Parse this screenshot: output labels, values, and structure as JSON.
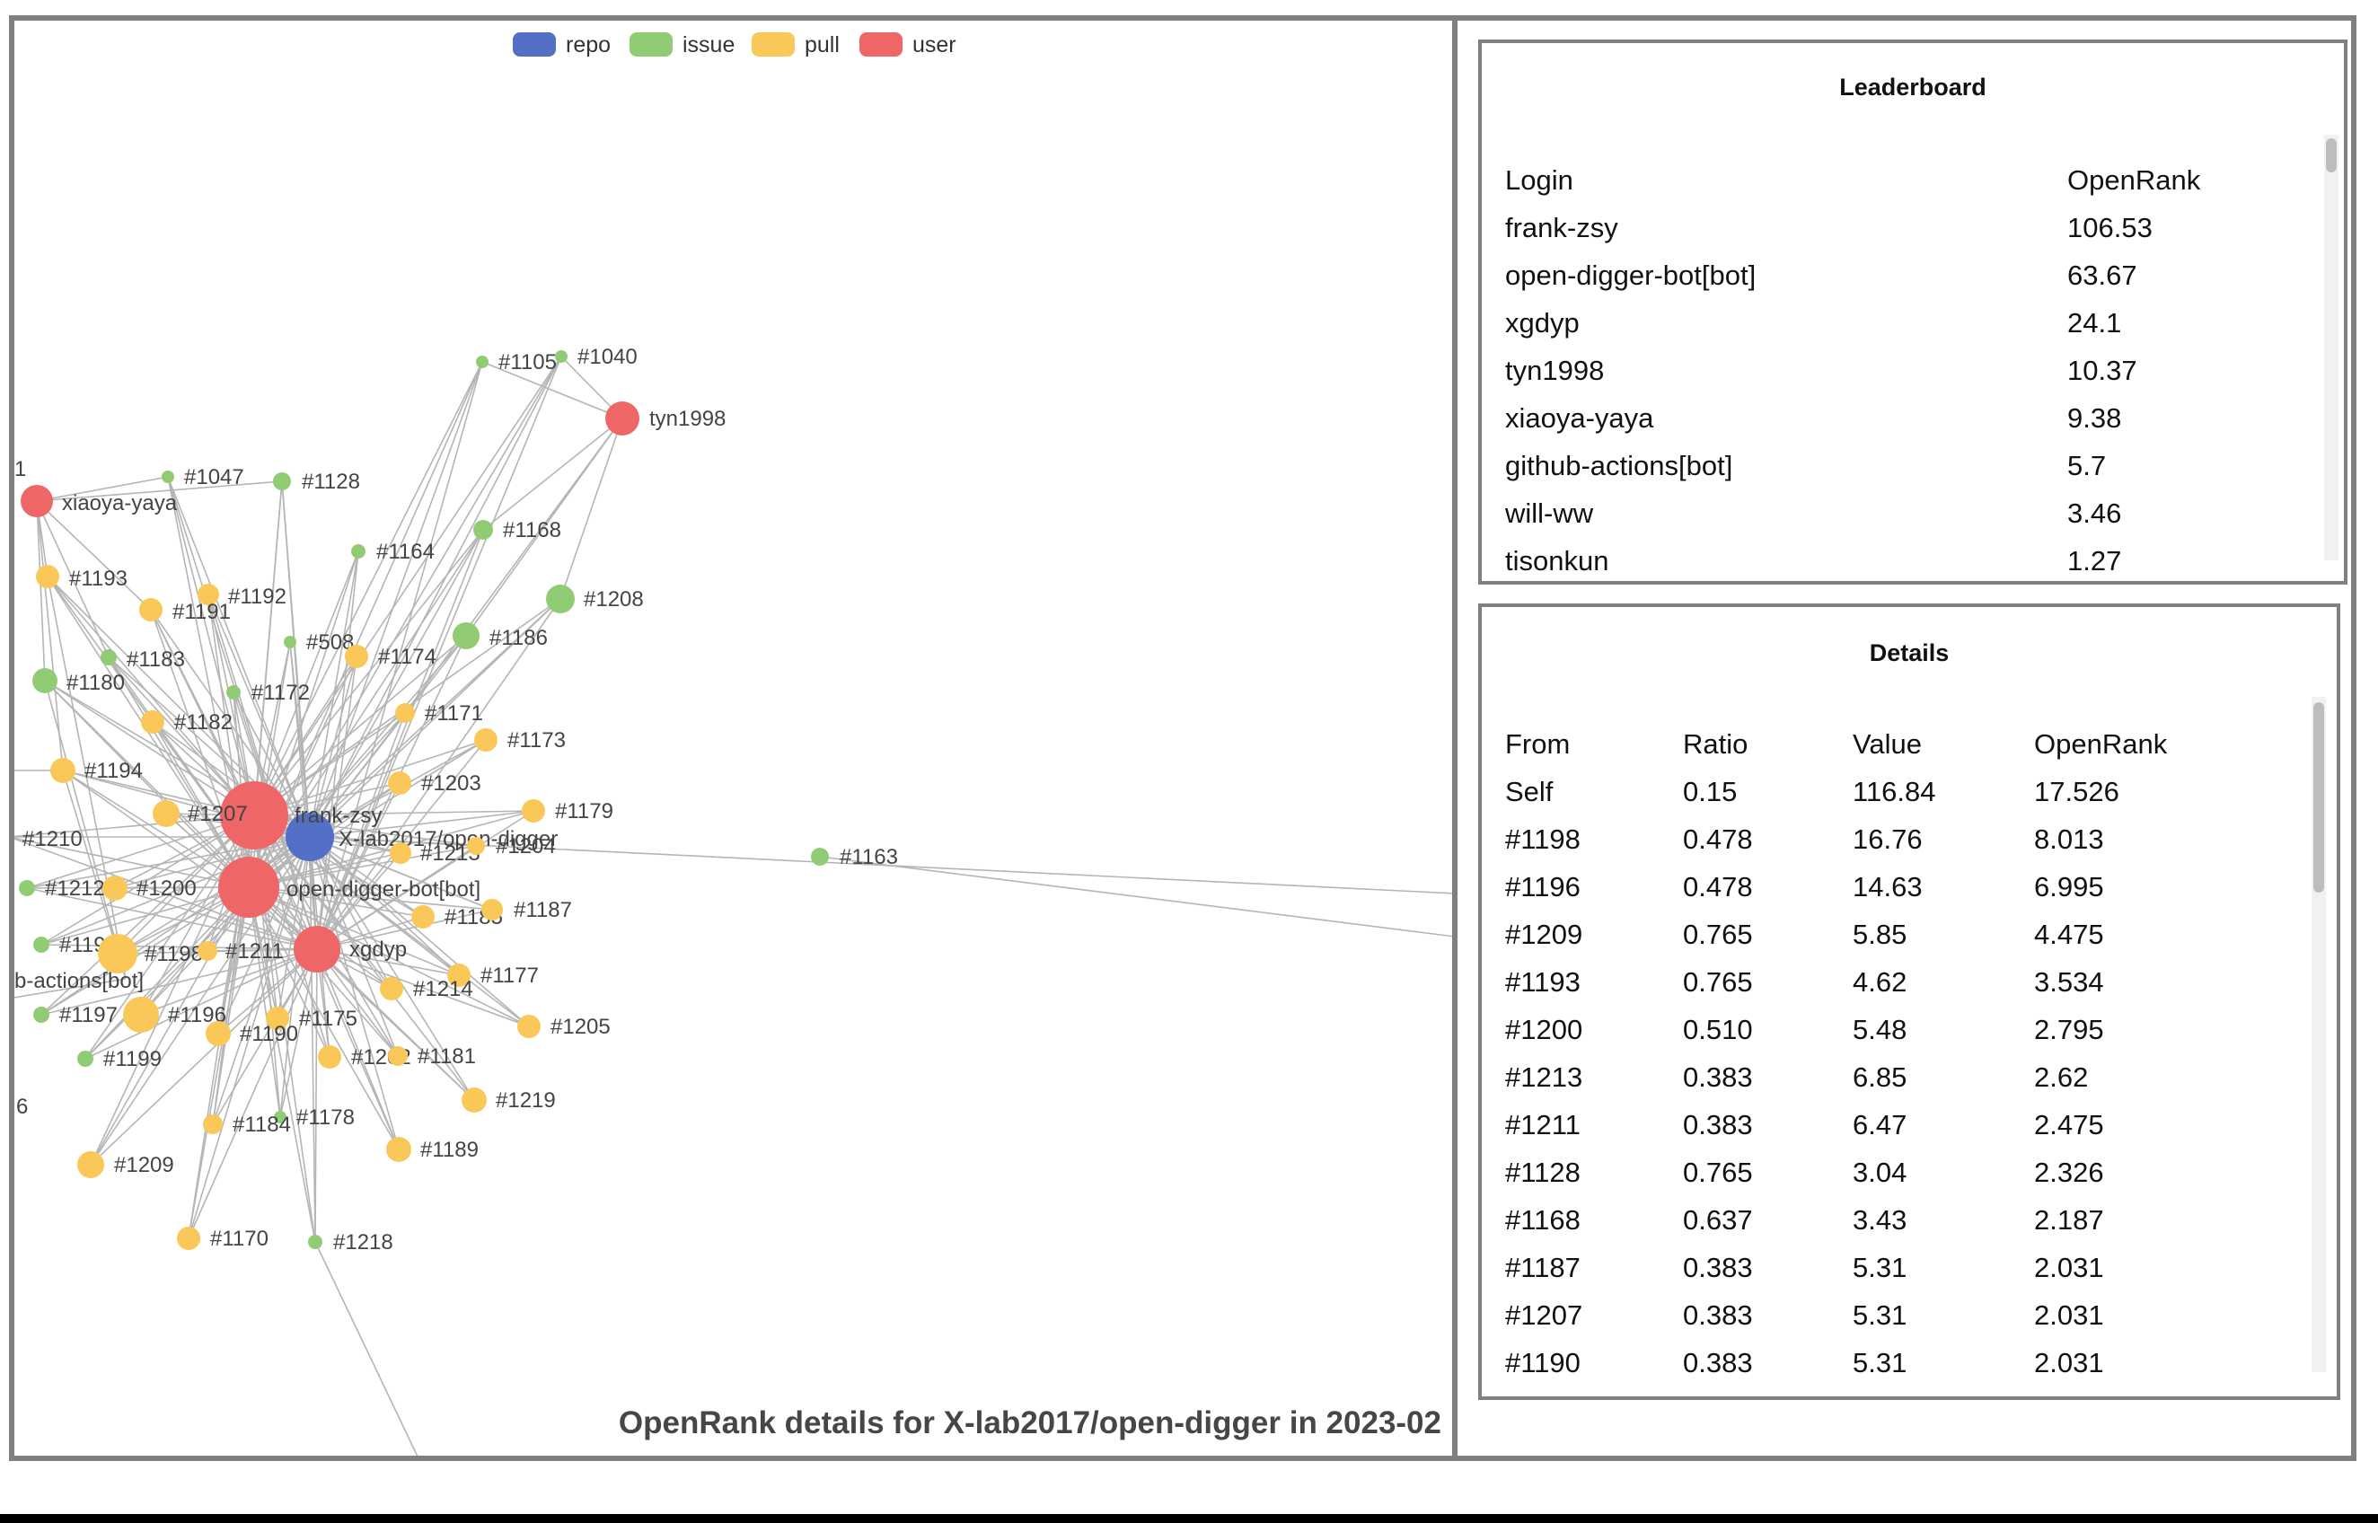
{
  "legend": [
    {
      "label": "repo",
      "color": "#5470c6"
    },
    {
      "label": "issue",
      "color": "#91cc75"
    },
    {
      "label": "pull",
      "color": "#fac858"
    },
    {
      "label": "user",
      "color": "#ee6666"
    }
  ],
  "graph": {
    "title": "OpenRank details for X-lab2017/open-digger in 2023-02",
    "nodes": [
      {
        "id": "repo",
        "label": "X-lab2017/open-digger",
        "type": "repo"
      },
      {
        "id": "frank",
        "label": "frank-zsy",
        "type": "user"
      },
      {
        "id": "bot",
        "label": "open-digger-bot[bot]",
        "type": "user"
      },
      {
        "id": "xgdyp",
        "label": "xgdyp",
        "type": "user"
      },
      {
        "id": "tyn",
        "label": "tyn1998",
        "type": "user"
      },
      {
        "id": "xiaoya",
        "label": "xiaoya-yaya",
        "type": "user"
      },
      {
        "id": "gha",
        "label": "b-actions[bot]",
        "type": "user"
      },
      {
        "id": "e1",
        "label": "1",
        "type": "user"
      },
      {
        "id": "e6",
        "label": "6",
        "type": "user"
      },
      {
        "id": "n1040",
        "label": "#1040",
        "type": "issue"
      },
      {
        "id": "n1105",
        "label": "#1105",
        "type": "issue"
      },
      {
        "id": "n1047",
        "label": "#1047",
        "type": "issue"
      },
      {
        "id": "n1128",
        "label": "#1128",
        "type": "issue"
      },
      {
        "id": "n1164",
        "label": "#1164",
        "type": "issue"
      },
      {
        "id": "n1168",
        "label": "#1168",
        "type": "issue"
      },
      {
        "id": "n1208",
        "label": "#1208",
        "type": "issue"
      },
      {
        "id": "n1186",
        "label": "#1186",
        "type": "issue"
      },
      {
        "id": "n508",
        "label": "#508",
        "type": "issue"
      },
      {
        "id": "n1183",
        "label": "#1183",
        "type": "issue"
      },
      {
        "id": "n1180",
        "label": "#1180",
        "type": "issue"
      },
      {
        "id": "n1172",
        "label": "#1172",
        "type": "issue"
      },
      {
        "id": "n1163",
        "label": "#1163",
        "type": "issue"
      },
      {
        "id": "n1212",
        "label": "#1212",
        "type": "issue"
      },
      {
        "id": "n1195",
        "label": "#1195",
        "type": "issue"
      },
      {
        "id": "n1197",
        "label": "#1197",
        "type": "issue"
      },
      {
        "id": "n1199",
        "label": "#1199",
        "type": "issue"
      },
      {
        "id": "n1178",
        "label": "#1178",
        "type": "issue"
      },
      {
        "id": "n1218",
        "label": "#1218",
        "type": "issue"
      },
      {
        "id": "n1193",
        "label": "#1193",
        "type": "pull"
      },
      {
        "id": "n1192",
        "label": "#1192",
        "type": "pull"
      },
      {
        "id": "n1191",
        "label": "#1191",
        "type": "pull"
      },
      {
        "id": "n1174",
        "label": "#1174",
        "type": "pull"
      },
      {
        "id": "n1182",
        "label": "#1182",
        "type": "pull"
      },
      {
        "id": "n1171",
        "label": "#1171",
        "type": "pull"
      },
      {
        "id": "n1173",
        "label": "#1173",
        "type": "pull"
      },
      {
        "id": "n1194",
        "label": "#1194",
        "type": "pull"
      },
      {
        "id": "n1203",
        "label": "#1203",
        "type": "pull"
      },
      {
        "id": "n1207",
        "label": "#1207",
        "type": "pull"
      },
      {
        "id": "n1179",
        "label": "#1179",
        "type": "pull"
      },
      {
        "id": "n1213",
        "label": "#1213",
        "type": "pull"
      },
      {
        "id": "n1204",
        "label": "#1204",
        "type": "pull"
      },
      {
        "id": "n1200",
        "label": "#1200",
        "type": "pull"
      },
      {
        "id": "n1185",
        "label": "#1185",
        "type": "pull"
      },
      {
        "id": "n1187",
        "label": "#1187",
        "type": "pull"
      },
      {
        "id": "n1198",
        "label": "#1198",
        "type": "pull"
      },
      {
        "id": "n1211",
        "label": "#1211",
        "type": "pull"
      },
      {
        "id": "n1177",
        "label": "#1177",
        "type": "pull"
      },
      {
        "id": "n1214",
        "label": "#1214",
        "type": "pull"
      },
      {
        "id": "n1196",
        "label": "#1196",
        "type": "pull"
      },
      {
        "id": "n1175",
        "label": "#1175",
        "type": "pull"
      },
      {
        "id": "n1190",
        "label": "#1190",
        "type": "pull"
      },
      {
        "id": "n1205",
        "label": "#1205",
        "type": "pull"
      },
      {
        "id": "n1202",
        "label": "#1202",
        "type": "pull"
      },
      {
        "id": "n1181",
        "label": "#1181",
        "type": "pull"
      },
      {
        "id": "n1219",
        "label": "#1219",
        "type": "pull"
      },
      {
        "id": "n1184",
        "label": "#1184",
        "type": "pull"
      },
      {
        "id": "n1189",
        "label": "#1189",
        "type": "pull"
      },
      {
        "id": "n1209",
        "label": "#1209",
        "type": "pull"
      },
      {
        "id": "n1170",
        "label": "#1170",
        "type": "pull"
      },
      {
        "id": "n1210",
        "label": "#1210",
        "type": "pull"
      }
    ]
  },
  "leaderboard": {
    "title": "Leaderboard",
    "headers": [
      "Login",
      "OpenRank"
    ],
    "rows": [
      [
        "frank-zsy",
        "106.53"
      ],
      [
        "open-digger-bot[bot]",
        "63.67"
      ],
      [
        "xgdyp",
        "24.1"
      ],
      [
        "tyn1998",
        "10.37"
      ],
      [
        "xiaoya-yaya",
        "9.38"
      ],
      [
        "github-actions[bot]",
        "5.7"
      ],
      [
        "will-ww",
        "3.46"
      ],
      [
        "tisonkun",
        "1.27"
      ]
    ]
  },
  "details": {
    "title": "Details",
    "headers": [
      "From",
      "Ratio",
      "Value",
      "OpenRank"
    ],
    "rows": [
      [
        "Self",
        "0.15",
        "116.84",
        "17.526"
      ],
      [
        "#1198",
        "0.478",
        "16.76",
        "8.013"
      ],
      [
        "#1196",
        "0.478",
        "14.63",
        "6.995"
      ],
      [
        "#1209",
        "0.765",
        "5.85",
        "4.475"
      ],
      [
        "#1193",
        "0.765",
        "4.62",
        "3.534"
      ],
      [
        "#1200",
        "0.510",
        "5.48",
        "2.795"
      ],
      [
        "#1213",
        "0.383",
        "6.85",
        "2.62"
      ],
      [
        "#1211",
        "0.383",
        "6.47",
        "2.475"
      ],
      [
        "#1128",
        "0.765",
        "3.04",
        "2.326"
      ],
      [
        "#1168",
        "0.637",
        "3.43",
        "2.187"
      ],
      [
        "#1187",
        "0.383",
        "5.31",
        "2.031"
      ],
      [
        "#1207",
        "0.383",
        "5.31",
        "2.031"
      ],
      [
        "#1190",
        "0.383",
        "5.31",
        "2.031"
      ]
    ]
  }
}
